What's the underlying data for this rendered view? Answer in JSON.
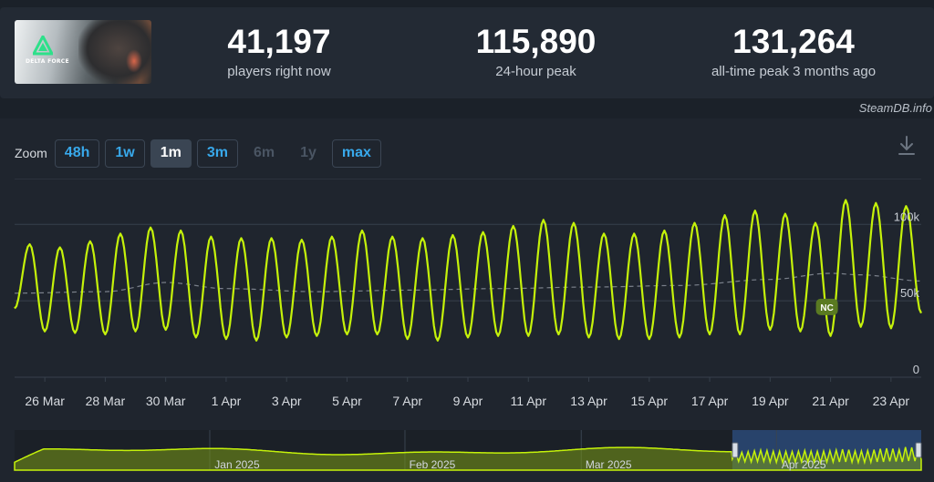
{
  "game": {
    "logo_text": "DELTA FORCE"
  },
  "stats": {
    "current": {
      "value": "41,197",
      "label": "players right now"
    },
    "peak_24h": {
      "value": "115,890",
      "label": "24-hour peak"
    },
    "all_time": {
      "value": "131,264",
      "label": "all-time peak 3 months ago"
    }
  },
  "watermark": "SteamDB.info",
  "zoom": {
    "label": "Zoom",
    "options": [
      {
        "label": "48h",
        "state": "enabled"
      },
      {
        "label": "1w",
        "state": "enabled"
      },
      {
        "label": "1m",
        "state": "active"
      },
      {
        "label": "3m",
        "state": "enabled"
      },
      {
        "label": "6m",
        "state": "disabled"
      },
      {
        "label": "1y",
        "state": "disabled"
      },
      {
        "label": "max",
        "state": "enabled"
      }
    ]
  },
  "icons": {
    "download": "download-icon",
    "brand": "delta-force-logo-icon"
  },
  "colors": {
    "series": "#c5f20a",
    "average": "#7a808a",
    "accent": "#38a8ea",
    "grid": "#37404c",
    "navigator_mask": "#2a4a78",
    "marker": "#5a7a22"
  },
  "chart_data": {
    "type": "line",
    "title": "",
    "xlabel": "",
    "ylabel": "",
    "ylim": [
      0,
      130000
    ],
    "y_ticks": [
      0,
      50000,
      100000
    ],
    "y_tick_labels": [
      "0",
      "50k",
      "100k"
    ],
    "grid": true,
    "x_range": [
      "2025-03-25",
      "2025-04-24"
    ],
    "x_ticks": [
      "2025-03-26",
      "2025-03-28",
      "2025-03-30",
      "2025-04-01",
      "2025-04-03",
      "2025-04-05",
      "2025-04-07",
      "2025-04-09",
      "2025-04-11",
      "2025-04-13",
      "2025-04-15",
      "2025-04-17",
      "2025-04-19",
      "2025-04-21",
      "2025-04-23"
    ],
    "x_tick_labels": [
      "26 Mar",
      "28 Mar",
      "30 Mar",
      "1 Apr",
      "3 Apr",
      "5 Apr",
      "7 Apr",
      "9 Apr",
      "11 Apr",
      "13 Apr",
      "15 Apr",
      "17 Apr",
      "19 Apr",
      "21 Apr",
      "23 Apr"
    ],
    "series": [
      {
        "description": "daily peaks and troughs of concurrent players",
        "points": [
          [
            "2025-03-25",
            45000
          ],
          [
            "2025-03-25T12:00",
            87000
          ],
          [
            "2025-03-26",
            30000
          ],
          [
            "2025-03-26T12:00",
            85000
          ],
          [
            "2025-03-27",
            29000
          ],
          [
            "2025-03-27T12:00",
            89000
          ],
          [
            "2025-03-28",
            28000
          ],
          [
            "2025-03-28T12:00",
            94000
          ],
          [
            "2025-03-29",
            30000
          ],
          [
            "2025-03-29T12:00",
            98000
          ],
          [
            "2025-03-30",
            31000
          ],
          [
            "2025-03-30T12:00",
            96000
          ],
          [
            "2025-03-31",
            26000
          ],
          [
            "2025-03-31T12:00",
            92000
          ],
          [
            "2025-04-01",
            25000
          ],
          [
            "2025-04-01T12:00",
            91000
          ],
          [
            "2025-04-02",
            24000
          ],
          [
            "2025-04-02T12:00",
            91000
          ],
          [
            "2025-04-03",
            26000
          ],
          [
            "2025-04-03T12:00",
            90000
          ],
          [
            "2025-04-04",
            27000
          ],
          [
            "2025-04-04T12:00",
            92000
          ],
          [
            "2025-04-05",
            28000
          ],
          [
            "2025-04-05T12:00",
            96000
          ],
          [
            "2025-04-06",
            28000
          ],
          [
            "2025-04-06T12:00",
            92000
          ],
          [
            "2025-04-07",
            25000
          ],
          [
            "2025-04-07T12:00",
            91000
          ],
          [
            "2025-04-08",
            24000
          ],
          [
            "2025-04-08T12:00",
            93000
          ],
          [
            "2025-04-09",
            26000
          ],
          [
            "2025-04-09T12:00",
            95000
          ],
          [
            "2025-04-10",
            27000
          ],
          [
            "2025-04-10T12:00",
            99000
          ],
          [
            "2025-04-11",
            27000
          ],
          [
            "2025-04-11T12:00",
            103000
          ],
          [
            "2025-04-12",
            28000
          ],
          [
            "2025-04-12T12:00",
            101000
          ],
          [
            "2025-04-13",
            26000
          ],
          [
            "2025-04-13T12:00",
            94000
          ],
          [
            "2025-04-14",
            25000
          ],
          [
            "2025-04-14T12:00",
            94000
          ],
          [
            "2025-04-15",
            25000
          ],
          [
            "2025-04-15T12:00",
            96000
          ],
          [
            "2025-04-16",
            26000
          ],
          [
            "2025-04-16T12:00",
            101000
          ],
          [
            "2025-04-17",
            28000
          ],
          [
            "2025-04-17T12:00",
            106000
          ],
          [
            "2025-04-18",
            28000
          ],
          [
            "2025-04-18T12:00",
            109000
          ],
          [
            "2025-04-19",
            31000
          ],
          [
            "2025-04-19T12:00",
            107000
          ],
          [
            "2025-04-20",
            30000
          ],
          [
            "2025-04-20T12:00",
            101000
          ],
          [
            "2025-04-21",
            27000
          ],
          [
            "2025-04-21T12:00",
            116000
          ],
          [
            "2025-04-22",
            33000
          ],
          [
            "2025-04-22T12:00",
            114000
          ],
          [
            "2025-04-23",
            32000
          ],
          [
            "2025-04-23T12:00",
            112000
          ],
          [
            "2025-04-24",
            42000
          ]
        ]
      },
      {
        "description": "moving average",
        "style": "dashed",
        "points": [
          [
            "2025-03-25",
            55000
          ],
          [
            "2025-03-28",
            56000
          ],
          [
            "2025-03-30",
            62000
          ],
          [
            "2025-04-01",
            58000
          ],
          [
            "2025-04-04",
            56000
          ],
          [
            "2025-04-07",
            57000
          ],
          [
            "2025-04-10",
            58000
          ],
          [
            "2025-04-13",
            59000
          ],
          [
            "2025-04-16",
            60000
          ],
          [
            "2025-04-19",
            64000
          ],
          [
            "2025-04-21",
            68000
          ],
          [
            "2025-04-22",
            67000
          ],
          [
            "2025-04-24",
            63000
          ]
        ]
      }
    ],
    "annotations": [
      {
        "x": "2025-04-21",
        "y": 46000,
        "label": "NC"
      }
    ],
    "navigator": {
      "x_range": [
        "2024-12-01",
        "2025-04-24"
      ],
      "tick_labels": [
        "Jan 2025",
        "Feb 2025",
        "Mar 2025",
        "Apr 2025"
      ],
      "tick_dates": [
        "2025-01-01",
        "2025-02-01",
        "2025-03-01",
        "2025-04-01"
      ],
      "selection": [
        "2025-03-25",
        "2025-04-24"
      ]
    }
  }
}
